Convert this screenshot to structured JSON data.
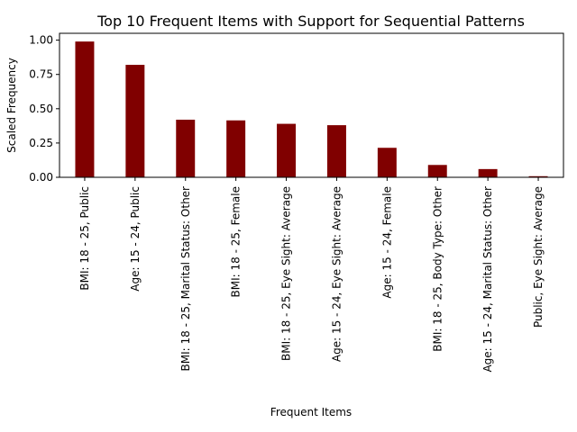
{
  "chart_data": {
    "type": "bar",
    "title": "Top 10 Frequent Items with Support for Sequential Patterns",
    "xlabel": "Frequent Items",
    "ylabel": "Scaled Frequency",
    "categories": [
      "BMI: 18 - 25, Public",
      "Age: 15 - 24, Public",
      "BMI: 18 - 25, Marital Status: Other",
      "BMI: 18 - 25, Female",
      "BMI: 18 - 25, Eye Sight: Average",
      "Age: 15 - 24, Eye Sight: Average",
      "Age: 15 - 24, Female",
      "BMI: 18 - 25, Body Type: Other",
      "Age: 15 - 24, Marital Status: Other",
      "Public, Eye Sight: Average"
    ],
    "values": [
      0.99,
      0.82,
      0.42,
      0.415,
      0.39,
      0.38,
      0.215,
      0.09,
      0.06,
      0.008
    ],
    "ylim": [
      0,
      1.05
    ],
    "yticks": [
      "0.00",
      "0.25",
      "0.50",
      "0.75",
      "1.00"
    ],
    "bar_color": "#800000",
    "grid": false
  }
}
